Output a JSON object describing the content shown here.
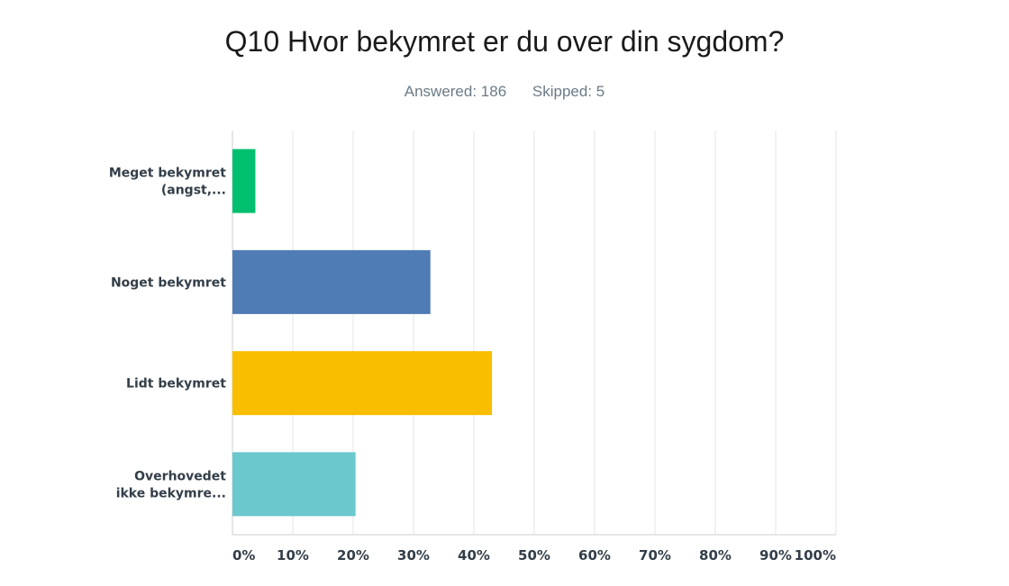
{
  "chart_data": {
    "type": "bar",
    "orientation": "horizontal",
    "title": "Q10 Hvor bekymret er du over din sygdom?",
    "answered_label": "Answered: 186",
    "skipped_label": "Skipped: 5",
    "categories": [
      [
        "Meget bekymret",
        "(angst,..."
      ],
      [
        "Noget bekymret"
      ],
      [
        "Lidt bekymret"
      ],
      [
        "Overhovedet",
        "ikke bekymre..."
      ]
    ],
    "values": [
      3.8,
      32.8,
      43.0,
      20.4
    ],
    "colors": [
      "#00bf6f",
      "#507cb6",
      "#f9be00",
      "#6bc8cd"
    ],
    "xlim": [
      0,
      100
    ],
    "xticks": [
      "0%",
      "10%",
      "20%",
      "30%",
      "40%",
      "50%",
      "60%",
      "70%",
      "80%",
      "90%",
      "100%"
    ],
    "grid": true
  }
}
